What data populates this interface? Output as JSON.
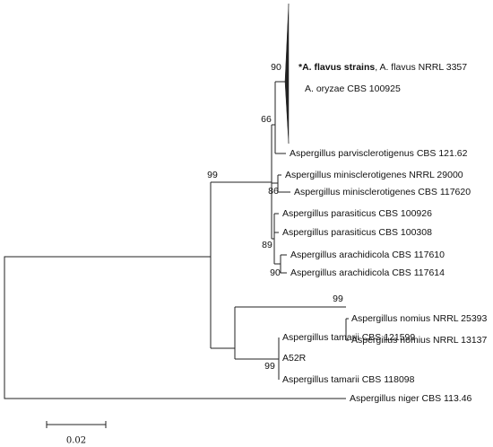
{
  "leaves": [
    {
      "label_bold": "*A. flavus strains",
      "label": ", A. flavus NRRL 3357"
    },
    {
      "label": "A. oryzae CBS 100925"
    },
    {
      "label": "Aspergillus parvisclerotigenus CBS 121.62"
    },
    {
      "label": "Aspergillus minisclerotigenes NRRL 29000"
    },
    {
      "label": "Aspergillus minisclerotigenes CBS 117620"
    },
    {
      "label": "Aspergillus parasiticus CBS 100926"
    },
    {
      "label": "Aspergillus parasiticus CBS 100308"
    },
    {
      "label": "Aspergillus arachidicola CBS 117610"
    },
    {
      "label": "Aspergillus arachidicola CBS 117614"
    },
    {
      "label": "Aspergillus nomius NRRL 25393"
    },
    {
      "label": "Aspergillus nomius NRRL 13137"
    },
    {
      "label": "Aspergillus tamarii CBS 121599"
    },
    {
      "label": "A52R"
    },
    {
      "label": "Aspergillus tamarii CBS 118098"
    },
    {
      "label": "Aspergillus niger CBS 113.46"
    }
  ],
  "bootstrap": [
    "90",
    "66",
    "99",
    "86",
    "89",
    "90",
    "99",
    "99"
  ],
  "scale_bar": {
    "label": "0.02"
  }
}
